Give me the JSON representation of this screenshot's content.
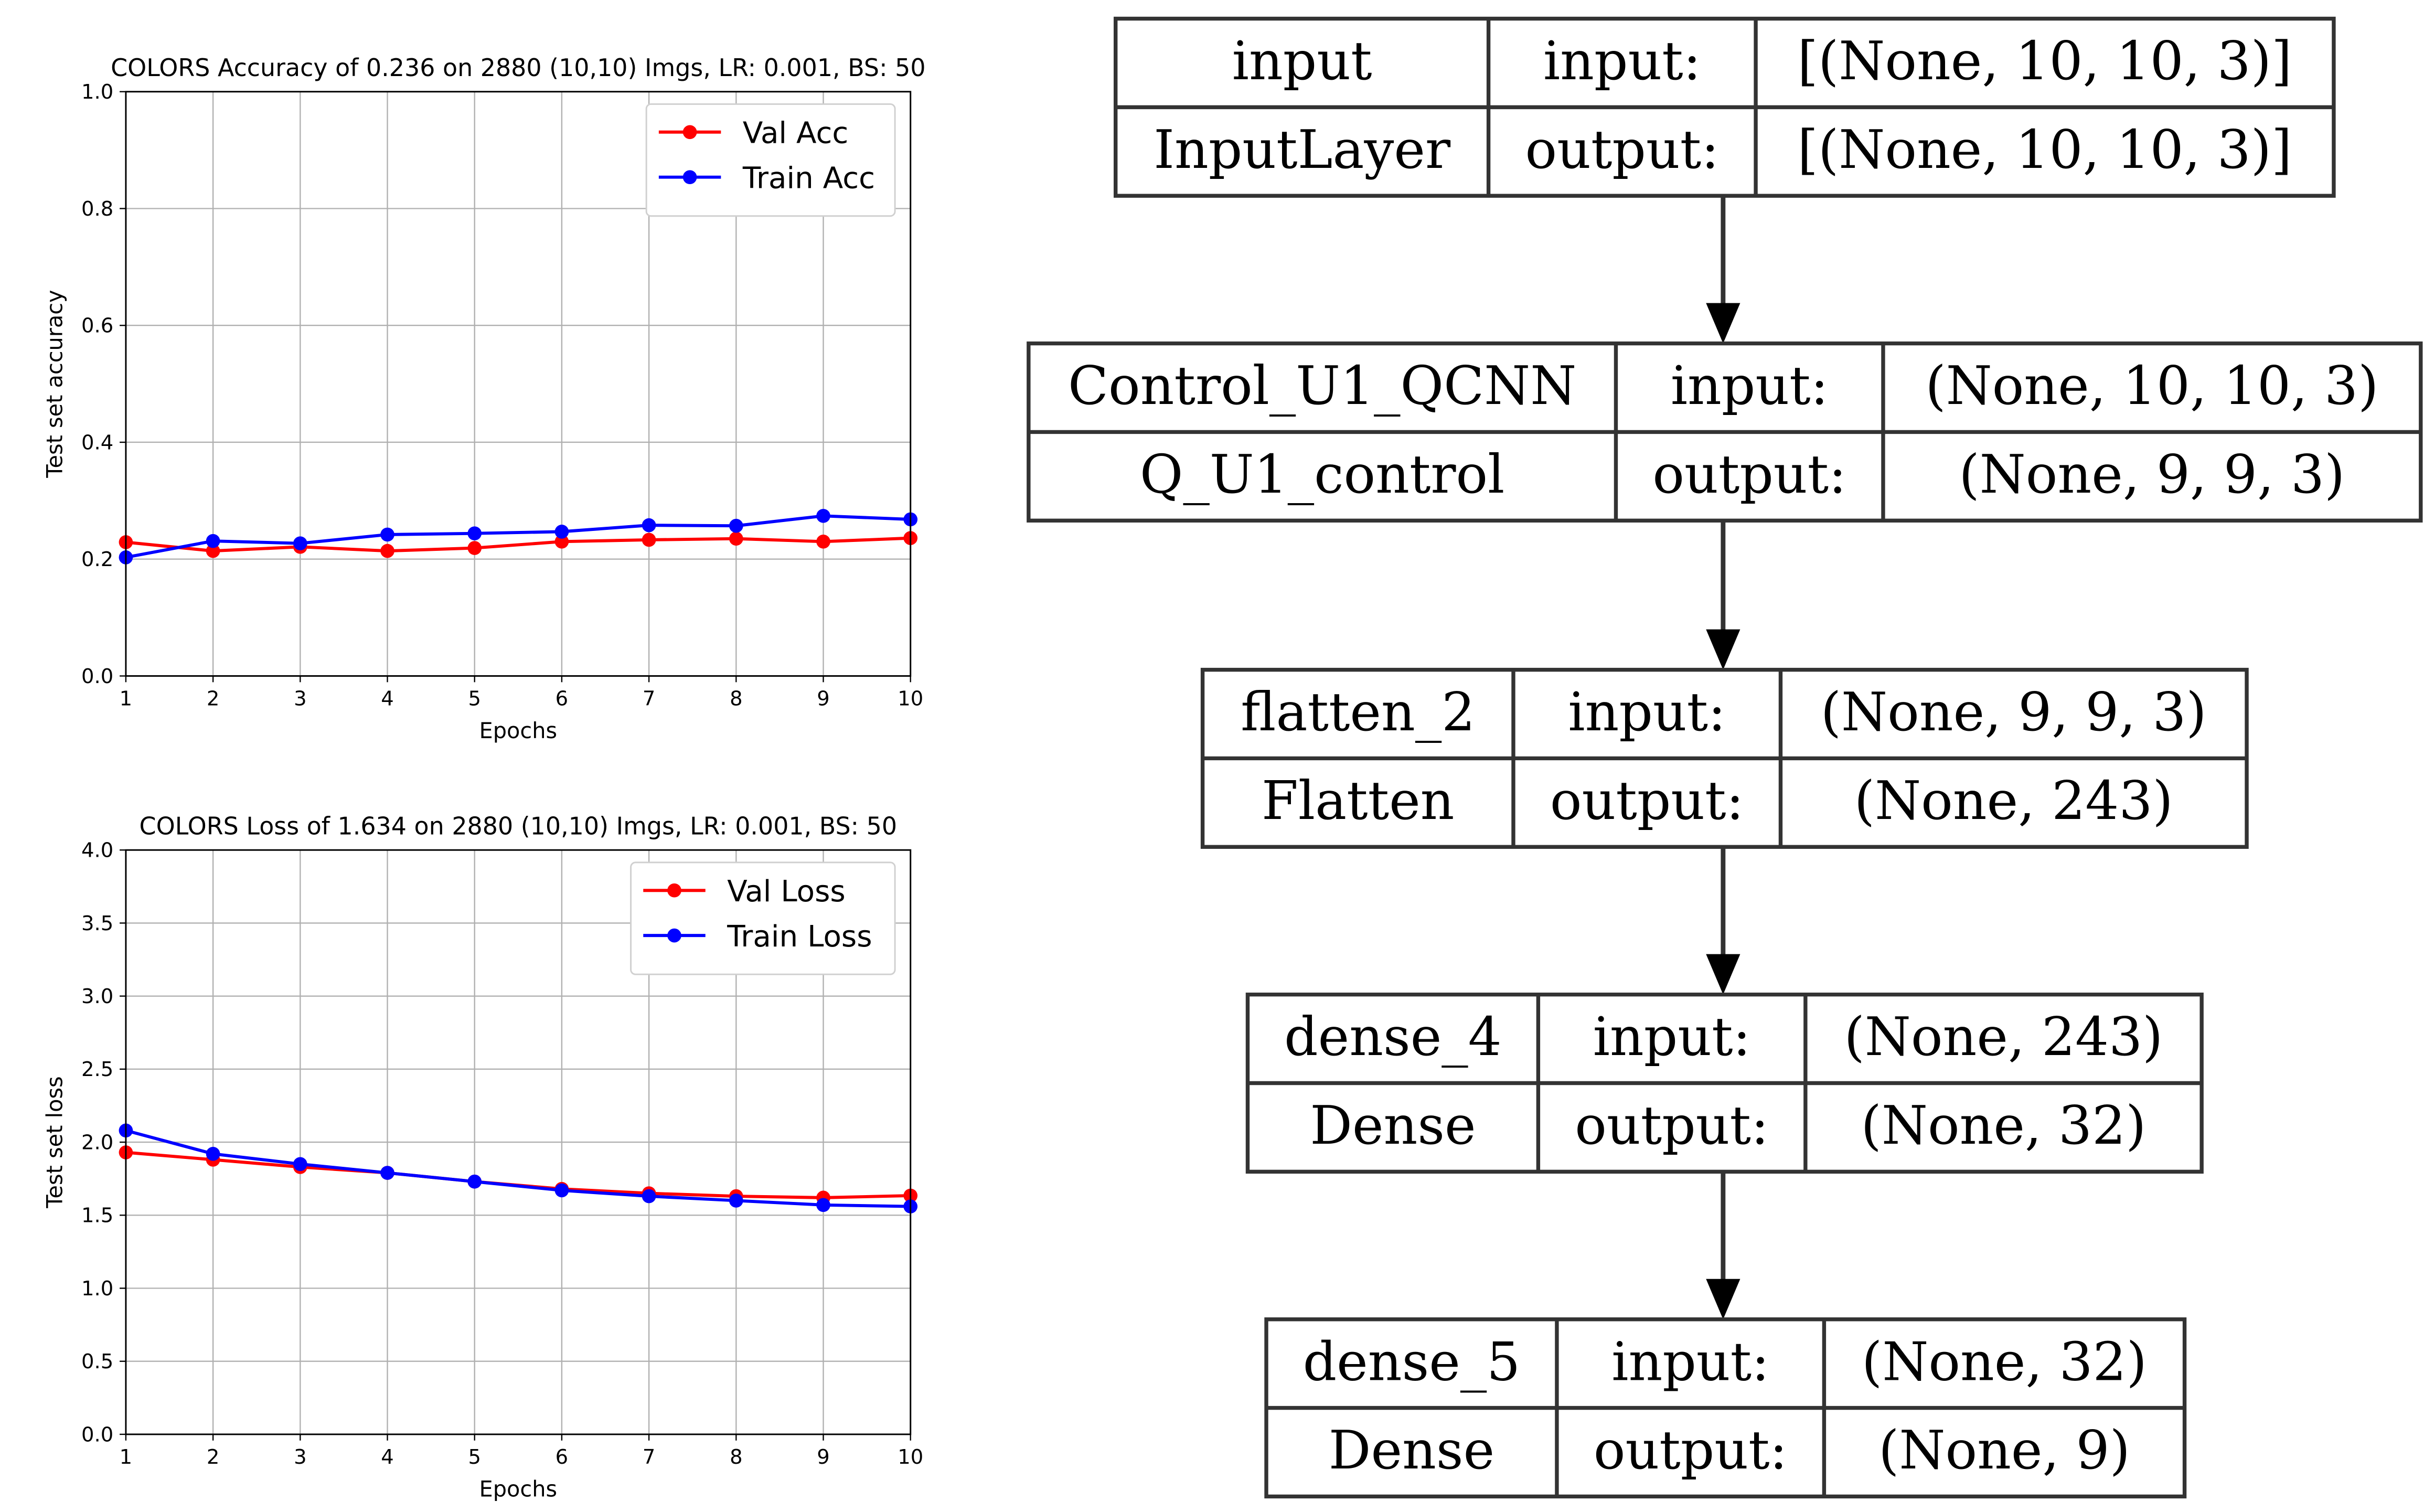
{
  "chart_data": [
    {
      "type": "line",
      "title": "COLORS Accuracy of 0.236 on 2880 (10,10) Imgs, LR: 0.001, BS: 50",
      "xlabel": "Epochs",
      "ylabel": "Test set accuracy",
      "xlim": [
        1,
        10
      ],
      "ylim": [
        0.0,
        1.0
      ],
      "x": [
        1,
        2,
        3,
        4,
        5,
        6,
        7,
        8,
        9,
        10
      ],
      "xticks": [
        "1",
        "2",
        "3",
        "4",
        "5",
        "6",
        "7",
        "8",
        "9",
        "10"
      ],
      "yticks": [
        "0.0",
        "0.2",
        "0.4",
        "0.6",
        "0.8",
        "1.0"
      ],
      "grid": true,
      "legend": "top-right",
      "series": [
        {
          "name": "Val Acc",
          "color": "#ff0000",
          "values": [
            0.229,
            0.214,
            0.221,
            0.214,
            0.219,
            0.23,
            0.233,
            0.235,
            0.23,
            0.236
          ]
        },
        {
          "name": "Train Acc",
          "color": "#0000ff",
          "values": [
            0.203,
            0.231,
            0.227,
            0.242,
            0.244,
            0.247,
            0.258,
            0.257,
            0.274,
            0.268
          ]
        }
      ]
    },
    {
      "type": "line",
      "title": "COLORS Loss of 1.634 on 2880 (10,10) Imgs, LR: 0.001, BS: 50",
      "xlabel": "Epochs",
      "ylabel": "Test set loss",
      "xlim": [
        1,
        10
      ],
      "ylim": [
        0.0,
        4.0
      ],
      "x": [
        1,
        2,
        3,
        4,
        5,
        6,
        7,
        8,
        9,
        10
      ],
      "xticks": [
        "1",
        "2",
        "3",
        "4",
        "5",
        "6",
        "7",
        "8",
        "9",
        "10"
      ],
      "yticks": [
        "0.0",
        "0.5",
        "1.0",
        "1.5",
        "2.0",
        "2.5",
        "3.0",
        "3.5",
        "4.0"
      ],
      "grid": true,
      "legend": "top-right",
      "series": [
        {
          "name": "Val Loss",
          "color": "#ff0000",
          "values": [
            1.93,
            1.88,
            1.83,
            1.79,
            1.73,
            1.68,
            1.65,
            1.63,
            1.62,
            1.634
          ]
        },
        {
          "name": "Train Loss",
          "color": "#0000ff",
          "values": [
            2.08,
            1.92,
            1.85,
            1.79,
            1.73,
            1.67,
            1.63,
            1.6,
            1.57,
            1.56
          ]
        }
      ]
    }
  ],
  "model_diagram": {
    "layers": [
      {
        "name": "input",
        "type": "InputLayer",
        "input_label": "input:",
        "output_label": "output:",
        "input_shape": "[(None, 10, 10, 3)]",
        "output_shape": "[(None, 10, 10, 3)]"
      },
      {
        "name": "Control_U1_QCNN",
        "type": "Q_U1_control",
        "input_label": "input:",
        "output_label": "output:",
        "input_shape": "(None, 10, 10, 3)",
        "output_shape": "(None, 9, 9, 3)"
      },
      {
        "name": "flatten_2",
        "type": "Flatten",
        "input_label": "input:",
        "output_label": "output:",
        "input_shape": "(None, 9, 9, 3)",
        "output_shape": "(None, 243)"
      },
      {
        "name": "dense_4",
        "type": "Dense",
        "input_label": "input:",
        "output_label": "output:",
        "input_shape": "(None, 243)",
        "output_shape": "(None, 32)"
      },
      {
        "name": "dense_5",
        "type": "Dense",
        "input_label": "input:",
        "output_label": "output:",
        "input_shape": "(None, 32)",
        "output_shape": "(None, 9)"
      }
    ]
  }
}
